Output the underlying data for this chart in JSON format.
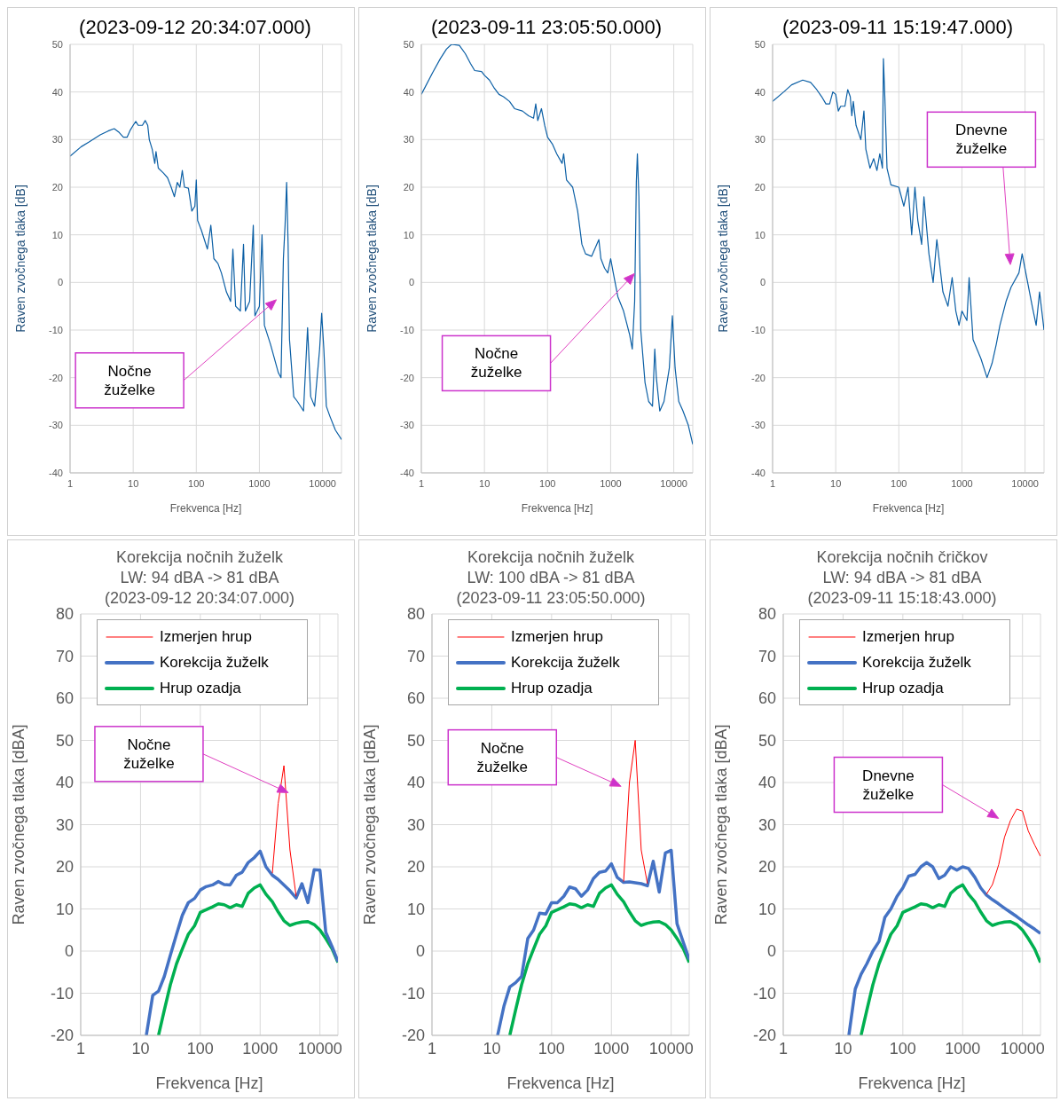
{
  "chart_data": [
    {
      "type": "line",
      "title": "(2023-09-12 20:34:07.000)",
      "xlabel": "Frekvenca [Hz]",
      "ylabel": "Raven zvočnega tlaka [dB]",
      "log": "x",
      "xlim": [
        1,
        20000
      ],
      "xticks": [
        1,
        10,
        100,
        1000,
        10000
      ],
      "ylim": [
        -40,
        50
      ],
      "yticks": [
        -40,
        -30,
        -20,
        -10,
        0,
        10,
        20,
        30,
        40,
        50
      ],
      "grid": true,
      "legend": false,
      "marker": "none",
      "annotations": [
        "Nočne žuželke"
      ],
      "series": [
        {
          "color": "#0b5fa5",
          "x": [
            1,
            1.5,
            2,
            3,
            4,
            5,
            6,
            7,
            8,
            9,
            10,
            11,
            12,
            14,
            15.5,
            17,
            18,
            20,
            22,
            23,
            25,
            30,
            35,
            40,
            45,
            50,
            55,
            60,
            65,
            75,
            85,
            95,
            100,
            105,
            120,
            150,
            170,
            190,
            220,
            250,
            300,
            350,
            380,
            420,
            500,
            560,
            600,
            700,
            800,
            850,
            1000,
            1100,
            1200,
            1500,
            2000,
            2200,
            2400,
            2550,
            2700,
            2850,
            3000,
            3500,
            4000,
            5000,
            5800,
            6500,
            7500,
            9000,
            9700,
            10500,
            11500,
            13000,
            16000,
            20000
          ],
          "values": [
            26.5,
            28.5,
            29.5,
            31,
            31.8,
            32.3,
            31.5,
            30.5,
            30.5,
            32,
            33,
            33.8,
            33,
            33,
            34,
            33,
            30,
            28,
            25,
            27.5,
            24,
            23,
            22,
            20,
            18,
            21,
            20,
            23.5,
            20,
            19.8,
            15,
            16,
            21.5,
            13,
            11,
            7,
            12,
            5,
            4,
            2,
            -2,
            -4,
            7,
            -5,
            -6,
            8,
            -6,
            -4,
            12,
            -7,
            -5,
            10,
            -9,
            -13,
            -19,
            -20,
            5,
            12,
            21,
            8,
            -12,
            -24,
            -25,
            -27,
            -9.5,
            -24,
            -26,
            -14,
            -6.5,
            -14,
            -26,
            -28,
            -31,
            -33
          ]
        }
      ]
    },
    {
      "type": "line",
      "title": "(2023-09-11 23:05:50.000)",
      "xlabel": "Frekvenca [Hz]",
      "ylabel": "Raven zvočnega tlaka [dB]",
      "log": "x",
      "xlim": [
        1,
        20000
      ],
      "xticks": [
        1,
        10,
        100,
        1000,
        10000
      ],
      "ylim": [
        -40,
        50
      ],
      "yticks": [
        -40,
        -30,
        -20,
        -10,
        0,
        10,
        20,
        30,
        40,
        50
      ],
      "grid": true,
      "legend": false,
      "marker": "none",
      "annotations": [
        "Nočne žuželke"
      ],
      "series": [
        {
          "color": "#0b5fa5",
          "x": [
            1,
            1.5,
            2,
            2.5,
            3,
            4,
            5,
            6,
            7,
            9,
            10,
            12,
            14,
            17,
            20,
            25,
            30,
            40,
            50,
            60,
            65,
            70,
            80,
            90,
            100,
            120,
            140,
            170,
            180,
            200,
            250,
            300,
            350,
            400,
            500,
            650,
            700,
            800,
            900,
            1000,
            1100,
            1300,
            1600,
            2000,
            2200,
            2400,
            2550,
            2650,
            2800,
            3000,
            3500,
            4000,
            4600,
            5000,
            5300,
            6000,
            7000,
            8500,
            9500,
            10500,
            12000,
            14000,
            17000,
            20000
          ],
          "values": [
            39.5,
            44,
            47,
            49,
            50,
            49.8,
            48,
            46,
            44.5,
            44.3,
            43.5,
            42.5,
            41,
            39.5,
            39,
            38,
            36.5,
            36,
            35,
            34.5,
            37.5,
            34,
            36.5,
            33,
            30.5,
            29,
            27,
            25,
            27,
            21.5,
            20,
            15,
            8,
            6,
            5.5,
            9,
            5,
            3,
            2,
            5,
            2,
            -3,
            -6,
            -11,
            -14,
            -4,
            21,
            27,
            18,
            -10,
            -21,
            -25,
            -26,
            -14,
            -20,
            -27,
            -25,
            -18,
            -7,
            -18,
            -25,
            -27,
            -30,
            -34
          ]
        }
      ]
    },
    {
      "type": "line",
      "title": "(2023-09-11 15:19:47.000)",
      "xlabel": "Frekvenca [Hz]",
      "ylabel": "Raven zvočnega tlaka [dB]",
      "log": "x",
      "xlim": [
        1,
        20000
      ],
      "xticks": [
        1,
        10,
        100,
        1000,
        10000
      ],
      "ylim": [
        -40,
        50
      ],
      "yticks": [
        -40,
        -30,
        -20,
        -10,
        0,
        10,
        20,
        30,
        40,
        50
      ],
      "grid": true,
      "legend": false,
      "marker": "none",
      "annotations": [
        "Dnevne žuželke"
      ],
      "series": [
        {
          "color": "#0b5fa5",
          "x": [
            1,
            1.5,
            2,
            3,
            4,
            5,
            6,
            7,
            8,
            9,
            10,
            11,
            12,
            14,
            15.5,
            17,
            18,
            19,
            21,
            25,
            28,
            30,
            35,
            40,
            45,
            50,
            55,
            57,
            60,
            65,
            75,
            100,
            120,
            140,
            160,
            180,
            200,
            230,
            250,
            300,
            350,
            400,
            500,
            600,
            700,
            800,
            900,
            1000,
            1200,
            1300,
            1500,
            2000,
            2500,
            3000,
            3500,
            4000,
            5000,
            6000,
            8000,
            9000,
            11000,
            13000,
            15000,
            17000,
            20000
          ],
          "values": [
            38,
            40,
            41.5,
            42.5,
            42,
            40.5,
            39,
            37.5,
            37.5,
            40,
            39.5,
            36,
            37,
            37,
            40.5,
            39,
            35,
            38,
            33,
            30,
            36,
            28,
            24,
            26,
            23.5,
            27,
            24,
            47,
            39,
            24,
            20.5,
            20,
            16,
            20,
            10,
            20,
            13,
            8,
            18,
            6,
            0,
            9,
            -2,
            -5,
            1,
            -6,
            -9,
            -6,
            -8,
            1,
            -12,
            -16,
            -20,
            -17,
            -13,
            -9,
            -4,
            -1,
            2,
            6,
            0,
            -5,
            -9,
            -2,
            -10
          ]
        }
      ]
    },
    {
      "type": "line",
      "title": "Korekcija nočnih žuželk\nLW: 94 dBA  -> 81 dBA\n(2023-09-12 20:34:07.000)",
      "xlabel": "Frekvenca [Hz]",
      "ylabel": "Raven zvočnega tlaka [dBA]",
      "log": "x",
      "xlim": [
        1,
        20000
      ],
      "xticks": [
        1,
        10,
        100,
        1000,
        10000
      ],
      "ylim": [
        -20,
        80
      ],
      "yticks": [
        -20,
        -10,
        0,
        10,
        20,
        30,
        40,
        50,
        60,
        70,
        80
      ],
      "grid": true,
      "legend": "top",
      "marker": "none",
      "annotations": [
        "Nočne žuželke"
      ],
      "series": [
        {
          "name": "Izmerjen hrup",
          "color": "#ff0000",
          "x": [
            1600,
            2000,
            2500,
            3150,
            4000
          ],
          "values": [
            18.5,
            35,
            44,
            24,
            13
          ]
        },
        {
          "name": "Korekcija žuželk",
          "color": "#4472c4",
          "x": [
            12.5,
            16,
            20,
            25,
            31.5,
            40,
            50,
            63,
            80,
            100,
            125,
            160,
            200,
            250,
            315,
            400,
            500,
            630,
            800,
            1000,
            1250,
            1600,
            2000,
            2500,
            3150,
            4000,
            5000,
            6300,
            8000,
            10000,
            12500,
            16000,
            20000
          ],
          "values": [
            -20,
            -10.5,
            -9.5,
            -6,
            -1,
            4,
            8.5,
            11.5,
            12.5,
            14.5,
            15.3,
            15.7,
            16.5,
            15.8,
            15.7,
            18,
            18.7,
            21,
            22.2,
            23.7,
            20,
            18,
            17,
            15.7,
            14.3,
            12.6,
            16,
            11.5,
            19.3,
            19.2,
            4.5,
            1,
            -2.5
          ]
        },
        {
          "name": "Hrup ozadja",
          "color": "#00b050",
          "x": [
            20,
            25,
            31.5,
            40,
            50,
            63,
            80,
            100,
            125,
            160,
            200,
            250,
            315,
            400,
            500,
            630,
            800,
            1000,
            1250,
            1600,
            2000,
            2500,
            3150,
            4000,
            5000,
            6300,
            8000,
            10000,
            12500,
            16000,
            20000
          ],
          "values": [
            -20,
            -14,
            -8,
            -3,
            0.5,
            4,
            6,
            9.2,
            9.8,
            10.5,
            11.2,
            11,
            10.3,
            11,
            10.6,
            13.7,
            15,
            15.7,
            13.5,
            11.7,
            9.3,
            7.2,
            6.1,
            6.6,
            6.9,
            7,
            6.3,
            5,
            3,
            0.5,
            -2.7
          ]
        }
      ]
    },
    {
      "type": "line",
      "title": "Korekcija nočnih žuželk\nLW: 100 dBA  -> 81 dBA\n(2023-09-11 23:05:50.000)",
      "xlabel": "Frekvenca [Hz]",
      "ylabel": "Raven zvočnega tlaka [dBA]",
      "log": "x",
      "xlim": [
        1,
        20000
      ],
      "xticks": [
        1,
        10,
        100,
        1000,
        10000
      ],
      "ylim": [
        -20,
        80
      ],
      "yticks": [
        -20,
        -10,
        0,
        10,
        20,
        30,
        40,
        50,
        60,
        70,
        80
      ],
      "grid": true,
      "legend": "top",
      "marker": "none",
      "annotations": [
        "Nočne žuželke"
      ],
      "series": [
        {
          "name": "Izmerjen hrup",
          "color": "#ff0000",
          "x": [
            1600,
            2000,
            2500,
            3150,
            4000
          ],
          "values": [
            16.5,
            40,
            50,
            24,
            16
          ]
        },
        {
          "name": "Korekcija žuželk",
          "color": "#4472c4",
          "x": [
            12.5,
            16,
            20,
            25,
            31.5,
            40,
            50,
            63,
            80,
            100,
            125,
            160,
            200,
            250,
            315,
            400,
            500,
            630,
            800,
            1000,
            1250,
            1600,
            2000,
            2500,
            3150,
            4000,
            5000,
            6300,
            8000,
            10000,
            12500,
            16000,
            20000
          ],
          "values": [
            -20,
            -13,
            -8.5,
            -7.5,
            -6,
            3,
            5,
            9,
            8.8,
            11.5,
            11.5,
            13,
            15.2,
            14.8,
            13,
            14.5,
            17.2,
            18.7,
            19,
            20.7,
            17.5,
            16.3,
            16.4,
            16.2,
            16,
            15.5,
            21.3,
            14,
            23.3,
            23.9,
            6.5,
            2,
            -2
          ]
        },
        {
          "name": "Hrup ozadja",
          "color": "#00b050",
          "x": [
            20,
            25,
            31.5,
            40,
            50,
            63,
            80,
            100,
            125,
            160,
            200,
            250,
            315,
            400,
            500,
            630,
            800,
            1000,
            1250,
            1600,
            2000,
            2500,
            3150,
            4000,
            5000,
            6300,
            8000,
            10000,
            12500,
            16000,
            20000
          ],
          "values": [
            -20,
            -14,
            -8,
            -3,
            0.5,
            4,
            6,
            9.2,
            9.8,
            10.5,
            11.2,
            11,
            10.3,
            11,
            10.6,
            13.7,
            15,
            15.7,
            13.5,
            11.7,
            9.3,
            7.2,
            6.1,
            6.6,
            6.9,
            7,
            6.3,
            5,
            3,
            0.5,
            -2.7
          ]
        }
      ]
    },
    {
      "type": "line",
      "title": "Korekcija nočnih čričkov\nLW: 94 dBA  -> 81 dBA\n(2023-09-11 15:18:43.000)",
      "xlabel": "Frekvenca [Hz]",
      "ylabel": "Raven zvočnega tlaka [dBA]",
      "log": "x",
      "xlim": [
        1,
        20000
      ],
      "xticks": [
        1,
        10,
        100,
        1000,
        10000
      ],
      "ylim": [
        -20,
        80
      ],
      "yticks": [
        -20,
        -10,
        0,
        10,
        20,
        30,
        40,
        50,
        60,
        70,
        80
      ],
      "grid": true,
      "legend": "top",
      "marker": "none",
      "annotations": [
        "Dnevne žuželke"
      ],
      "series": [
        {
          "name": "Izmerjen hrup",
          "color": "#ff0000",
          "x": [
            2500,
            3150,
            4000,
            5000,
            6300,
            8000,
            10000,
            12500,
            16000,
            20000
          ],
          "values": [
            13.5,
            15.8,
            20.5,
            27,
            31,
            33.7,
            33.2,
            28.5,
            25.2,
            22.5
          ]
        },
        {
          "name": "Korekcija žuželk",
          "color": "#4472c4",
          "x": [
            12.5,
            16,
            20,
            25,
            31.5,
            40,
            50,
            63,
            80,
            100,
            125,
            160,
            200,
            250,
            315,
            400,
            500,
            630,
            800,
            1000,
            1250,
            1600,
            2000,
            2500,
            3150,
            4000,
            5000,
            6300,
            8000,
            10000,
            12500,
            16000,
            20000
          ],
          "values": [
            -20,
            -9,
            -5.5,
            -3,
            0,
            2.3,
            8,
            10,
            13,
            15,
            17.8,
            18.2,
            20,
            21,
            20,
            17.2,
            18,
            20,
            19.2,
            20,
            19.6,
            17.5,
            15,
            13.3,
            12.2,
            11.2,
            10.2,
            9.2,
            8.2,
            7.2,
            6.2,
            5.2,
            4.2
          ]
        },
        {
          "name": "Hrup ozadja",
          "color": "#00b050",
          "x": [
            20,
            25,
            31.5,
            40,
            50,
            63,
            80,
            100,
            125,
            160,
            200,
            250,
            315,
            400,
            500,
            630,
            800,
            1000,
            1250,
            1600,
            2000,
            2500,
            3150,
            4000,
            5000,
            6300,
            8000,
            10000,
            12500,
            16000,
            20000
          ],
          "values": [
            -20,
            -14,
            -8,
            -3,
            0.5,
            4,
            6,
            9.2,
            9.8,
            10.5,
            11.2,
            11,
            10.3,
            11,
            10.6,
            13.7,
            15,
            15.7,
            13.5,
            11.7,
            9.3,
            7.2,
            6.1,
            6.6,
            6.9,
            7,
            6.3,
            5,
            3,
            0.5,
            -2.7
          ]
        }
      ]
    }
  ]
}
